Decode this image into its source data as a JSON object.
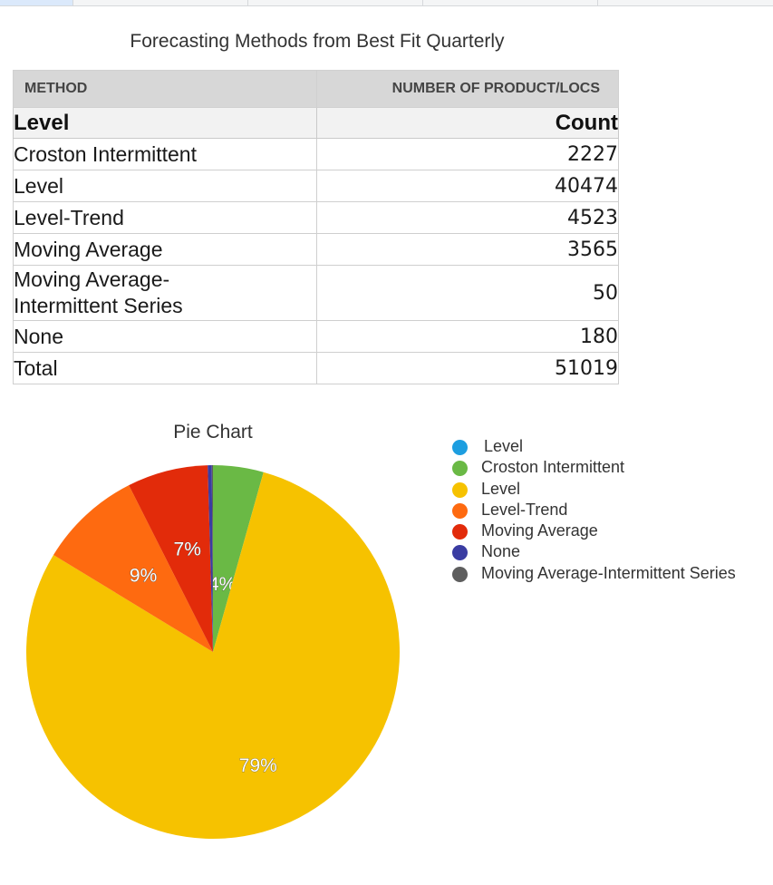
{
  "title": "Forecasting Methods from Best Fit Quarterly",
  "table": {
    "headers": [
      "METHOD",
      "NUMBER OF PRODUCT/LOCS"
    ],
    "subheader": [
      "Level",
      "Count"
    ],
    "rows": [
      {
        "name": "Croston Intermittent",
        "value": "2227"
      },
      {
        "name": "Level",
        "value": "40474"
      },
      {
        "name": "Level-Trend",
        "value": "4523"
      },
      {
        "name": "Moving Average",
        "value": "3565"
      },
      {
        "name": "Moving Average-Intermittent Series",
        "line1": "Moving Average-",
        "line2": "Intermittent Series",
        "value": "50"
      },
      {
        "name": "None",
        "value": "180"
      }
    ],
    "total": {
      "name": "Total",
      "value": "51019"
    }
  },
  "chart_data": {
    "type": "pie",
    "title": "Pie Chart",
    "slices": [
      {
        "name": "Croston Intermittent",
        "value": 2227,
        "label": "4%",
        "color": "#6ab945"
      },
      {
        "name": "Level",
        "value": 40474,
        "label": "79%",
        "color": "#f6c200"
      },
      {
        "name": "Level-Trend",
        "value": 4523,
        "label": "9%",
        "color": "#fe6a10"
      },
      {
        "name": "Moving Average",
        "value": 3565,
        "label": "7%",
        "color": "#e22b0a"
      },
      {
        "name": "None",
        "value": 180,
        "label": "",
        "color": "#3a3ca2"
      },
      {
        "name": "Moving Average-Intermittent Series",
        "value": 50,
        "label": "",
        "color": "#5e5e5e"
      }
    ],
    "legend": {
      "position": "right",
      "entries": [
        {
          "label": "Level",
          "color": "#1d9ee0"
        },
        {
          "label": "Croston Intermittent",
          "color": "#6ab945"
        },
        {
          "label": "Level",
          "color": "#f6c200"
        },
        {
          "label": "Level-Trend",
          "color": "#fe6a10"
        },
        {
          "label": "Moving Average",
          "color": "#e22b0a"
        },
        {
          "label": "None",
          "color": "#3a3ca2"
        },
        {
          "label": "Moving Average-Intermittent Series",
          "color": "#5e5e5e"
        }
      ]
    }
  }
}
